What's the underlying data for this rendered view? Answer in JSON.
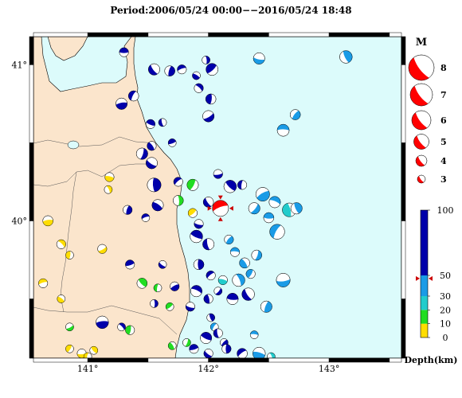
{
  "title": "Period:2006/05/24 00:00−−2016/05/24 18:48",
  "map": {
    "lon_range": [
      140.55,
      143.6
    ],
    "lat_range": [
      39.12,
      41.18
    ],
    "lon_ticks": [
      {
        "value": 141,
        "label": "141°"
      },
      {
        "value": 142,
        "label": "142°"
      },
      {
        "value": 143,
        "label": "143°"
      }
    ],
    "lat_ticks": [
      {
        "value": 40,
        "label": "40°"
      },
      {
        "value": 41,
        "label": "41°"
      }
    ],
    "land_color": "#fbe5cc",
    "sea_color": "#dcfbfb",
    "selected_event": {
      "lon": 142.1,
      "lat": 40.08,
      "mag": 5,
      "color": "#ff0000"
    }
  },
  "magnitude_legend": {
    "title": "M",
    "items": [
      {
        "mag": 8,
        "label": "8"
      },
      {
        "mag": 7,
        "label": "7"
      },
      {
        "mag": 6,
        "label": "6"
      },
      {
        "mag": 5,
        "label": "5"
      },
      {
        "mag": 4,
        "label": "4"
      },
      {
        "mag": 3,
        "label": "3"
      }
    ]
  },
  "depth_scale": {
    "label": "Depth(km)",
    "ticks": [
      {
        "value": 100,
        "label": "100"
      },
      {
        "value": 50,
        "label": "50"
      },
      {
        "value": 30,
        "label": "30"
      },
      {
        "value": 20,
        "label": "20"
      },
      {
        "value": 10,
        "label": "10"
      },
      {
        "value": 0,
        "label": "0"
      }
    ],
    "colors": {
      "deep": "#0000aa",
      "mid": "#1a9be6",
      "teal": "#22cccc",
      "green": "#22dd22",
      "yellow": "#ffdd00"
    },
    "marker_depth": 47
  },
  "events": [
    {
      "lon": 141.3,
      "lat": 41.08,
      "mag": 3.8,
      "c": "deep"
    },
    {
      "lon": 141.55,
      "lat": 40.97,
      "mag": 4.2,
      "c": "deep"
    },
    {
      "lon": 141.68,
      "lat": 40.96,
      "mag": 4.0,
      "c": "deep"
    },
    {
      "lon": 141.78,
      "lat": 40.97,
      "mag": 3.8,
      "c": "deep"
    },
    {
      "lon": 141.9,
      "lat": 40.93,
      "mag": 3.6,
      "c": "deep"
    },
    {
      "lon": 141.98,
      "lat": 41.03,
      "mag": 3.6,
      "c": "deep"
    },
    {
      "lon": 142.03,
      "lat": 40.97,
      "mag": 4.3,
      "c": "deep"
    },
    {
      "lon": 142.42,
      "lat": 41.04,
      "mag": 4.2,
      "c": "mid"
    },
    {
      "lon": 143.14,
      "lat": 41.05,
      "mag": 4.4,
      "c": "mid"
    },
    {
      "lon": 141.38,
      "lat": 40.8,
      "mag": 4.0,
      "c": "deep"
    },
    {
      "lon": 141.28,
      "lat": 40.75,
      "mag": 4.2,
      "c": "deep"
    },
    {
      "lon": 141.92,
      "lat": 40.85,
      "mag": 3.8,
      "c": "deep"
    },
    {
      "lon": 142.02,
      "lat": 40.78,
      "mag": 4.0,
      "c": "deep"
    },
    {
      "lon": 142.0,
      "lat": 40.67,
      "mag": 4.2,
      "c": "deep"
    },
    {
      "lon": 141.52,
      "lat": 40.62,
      "mag": 3.8,
      "c": "deep"
    },
    {
      "lon": 141.62,
      "lat": 40.63,
      "mag": 3.6,
      "c": "deep"
    },
    {
      "lon": 142.72,
      "lat": 40.68,
      "mag": 4.0,
      "c": "mid"
    },
    {
      "lon": 142.62,
      "lat": 40.58,
      "mag": 4.3,
      "c": "mid"
    },
    {
      "lon": 141.53,
      "lat": 40.48,
      "mag": 3.8,
      "c": "deep"
    },
    {
      "lon": 141.45,
      "lat": 40.43,
      "mag": 4.2,
      "c": "deep"
    },
    {
      "lon": 141.7,
      "lat": 40.5,
      "mag": 3.6,
      "c": "deep"
    },
    {
      "lon": 141.53,
      "lat": 40.37,
      "mag": 4.2,
      "c": "deep"
    },
    {
      "lon": 141.55,
      "lat": 40.23,
      "mag": 4.6,
      "c": "deep"
    },
    {
      "lon": 141.75,
      "lat": 40.25,
      "mag": 3.8,
      "c": "deep"
    },
    {
      "lon": 141.18,
      "lat": 40.28,
      "mag": 3.8,
      "c": "yellow"
    },
    {
      "lon": 141.17,
      "lat": 40.2,
      "mag": 3.6,
      "c": "yellow"
    },
    {
      "lon": 141.87,
      "lat": 40.23,
      "mag": 4.2,
      "c": "green"
    },
    {
      "lon": 142.08,
      "lat": 40.3,
      "mag": 3.8,
      "c": "deep"
    },
    {
      "lon": 142.18,
      "lat": 40.22,
      "mag": 4.4,
      "c": "deep"
    },
    {
      "lon": 142.28,
      "lat": 40.23,
      "mag": 3.8,
      "c": "deep"
    },
    {
      "lon": 142.45,
      "lat": 40.17,
      "mag": 4.6,
      "c": "mid"
    },
    {
      "lon": 142.55,
      "lat": 40.12,
      "mag": 4.2,
      "c": "mid"
    },
    {
      "lon": 142.67,
      "lat": 40.07,
      "mag": 4.6,
      "c": "teal"
    },
    {
      "lon": 142.38,
      "lat": 40.08,
      "mag": 4.2,
      "c": "mid"
    },
    {
      "lon": 142.5,
      "lat": 40.02,
      "mag": 4.0,
      "c": "mid"
    },
    {
      "lon": 142.0,
      "lat": 40.12,
      "mag": 4.0,
      "c": "deep"
    },
    {
      "lon": 141.33,
      "lat": 40.07,
      "mag": 3.8,
      "c": "deep"
    },
    {
      "lon": 141.48,
      "lat": 40.02,
      "mag": 3.6,
      "c": "deep"
    },
    {
      "lon": 141.58,
      "lat": 40.1,
      "mag": 4.2,
      "c": "deep"
    },
    {
      "lon": 141.75,
      "lat": 40.13,
      "mag": 4.0,
      "c": "green"
    },
    {
      "lon": 141.87,
      "lat": 40.05,
      "mag": 3.8,
      "c": "yellow"
    },
    {
      "lon": 141.92,
      "lat": 39.98,
      "mag": 3.8,
      "c": "deep"
    },
    {
      "lon": 142.73,
      "lat": 40.08,
      "mag": 4.2,
      "c": "mid"
    },
    {
      "lon": 142.57,
      "lat": 39.93,
      "mag": 4.8,
      "c": "mid"
    },
    {
      "lon": 140.67,
      "lat": 40.0,
      "mag": 4.0,
      "c": "yellow"
    },
    {
      "lon": 140.78,
      "lat": 39.85,
      "mag": 3.8,
      "c": "yellow"
    },
    {
      "lon": 140.85,
      "lat": 39.78,
      "mag": 3.6,
      "c": "yellow"
    },
    {
      "lon": 141.12,
      "lat": 39.82,
      "mag": 3.8,
      "c": "yellow"
    },
    {
      "lon": 141.9,
      "lat": 39.9,
      "mag": 4.4,
      "c": "deep"
    },
    {
      "lon": 142.0,
      "lat": 39.85,
      "mag": 4.2,
      "c": "deep"
    },
    {
      "lon": 142.17,
      "lat": 39.88,
      "mag": 3.8,
      "c": "mid"
    },
    {
      "lon": 142.22,
      "lat": 39.8,
      "mag": 3.8,
      "c": "mid"
    },
    {
      "lon": 142.3,
      "lat": 39.73,
      "mag": 4.0,
      "c": "mid"
    },
    {
      "lon": 142.4,
      "lat": 39.78,
      "mag": 4.0,
      "c": "mid"
    },
    {
      "lon": 141.35,
      "lat": 39.72,
      "mag": 3.8,
      "c": "deep"
    },
    {
      "lon": 141.62,
      "lat": 39.72,
      "mag": 3.6,
      "c": "deep"
    },
    {
      "lon": 141.92,
      "lat": 39.72,
      "mag": 4.0,
      "c": "deep"
    },
    {
      "lon": 142.02,
      "lat": 39.65,
      "mag": 3.8,
      "c": "deep"
    },
    {
      "lon": 142.12,
      "lat": 39.62,
      "mag": 3.8,
      "c": "teal"
    },
    {
      "lon": 142.25,
      "lat": 39.62,
      "mag": 4.4,
      "c": "mid"
    },
    {
      "lon": 142.35,
      "lat": 39.66,
      "mag": 3.8,
      "c": "mid"
    },
    {
      "lon": 142.62,
      "lat": 39.62,
      "mag": 4.6,
      "c": "mid"
    },
    {
      "lon": 141.45,
      "lat": 39.6,
      "mag": 4.0,
      "c": "green"
    },
    {
      "lon": 141.58,
      "lat": 39.57,
      "mag": 3.6,
      "c": "green"
    },
    {
      "lon": 141.72,
      "lat": 39.58,
      "mag": 3.8,
      "c": "deep"
    },
    {
      "lon": 141.9,
      "lat": 39.55,
      "mag": 4.2,
      "c": "deep"
    },
    {
      "lon": 142.0,
      "lat": 39.5,
      "mag": 3.8,
      "c": "deep"
    },
    {
      "lon": 142.08,
      "lat": 39.55,
      "mag": 3.6,
      "c": "deep"
    },
    {
      "lon": 142.2,
      "lat": 39.5,
      "mag": 4.2,
      "c": "deep"
    },
    {
      "lon": 142.33,
      "lat": 39.53,
      "mag": 4.4,
      "c": "deep"
    },
    {
      "lon": 142.48,
      "lat": 39.45,
      "mag": 4.2,
      "c": "mid"
    },
    {
      "lon": 140.63,
      "lat": 39.6,
      "mag": 3.8,
      "c": "yellow"
    },
    {
      "lon": 140.78,
      "lat": 39.5,
      "mag": 3.6,
      "c": "yellow"
    },
    {
      "lon": 141.55,
      "lat": 39.47,
      "mag": 3.6,
      "c": "deep"
    },
    {
      "lon": 141.68,
      "lat": 39.45,
      "mag": 3.6,
      "c": "green"
    },
    {
      "lon": 141.85,
      "lat": 39.45,
      "mag": 3.8,
      "c": "deep"
    },
    {
      "lon": 142.02,
      "lat": 39.38,
      "mag": 3.6,
      "c": "deep"
    },
    {
      "lon": 142.05,
      "lat": 39.32,
      "mag": 3.6,
      "c": "mid"
    },
    {
      "lon": 141.12,
      "lat": 39.35,
      "mag": 4.4,
      "c": "deep"
    },
    {
      "lon": 141.28,
      "lat": 39.32,
      "mag": 3.6,
      "c": "deep"
    },
    {
      "lon": 141.35,
      "lat": 39.3,
      "mag": 3.8,
      "c": "green"
    },
    {
      "lon": 140.85,
      "lat": 39.32,
      "mag": 3.6,
      "c": "green"
    },
    {
      "lon": 141.98,
      "lat": 39.25,
      "mag": 4.2,
      "c": "deep"
    },
    {
      "lon": 142.08,
      "lat": 39.28,
      "mag": 3.8,
      "c": "deep"
    },
    {
      "lon": 142.13,
      "lat": 39.22,
      "mag": 3.6,
      "c": "deep"
    },
    {
      "lon": 142.38,
      "lat": 39.27,
      "mag": 3.6,
      "c": "mid"
    },
    {
      "lon": 141.7,
      "lat": 39.2,
      "mag": 3.6,
      "c": "green"
    },
    {
      "lon": 141.82,
      "lat": 39.22,
      "mag": 3.6,
      "c": "green"
    },
    {
      "lon": 141.88,
      "lat": 39.18,
      "mag": 3.8,
      "c": "deep"
    },
    {
      "lon": 142.0,
      "lat": 39.15,
      "mag": 3.8,
      "c": "deep"
    },
    {
      "lon": 142.15,
      "lat": 39.18,
      "mag": 3.8,
      "c": "deep"
    },
    {
      "lon": 142.28,
      "lat": 39.15,
      "mag": 4.0,
      "c": "deep"
    },
    {
      "lon": 142.42,
      "lat": 39.15,
      "mag": 4.4,
      "c": "mid"
    },
    {
      "lon": 142.52,
      "lat": 39.13,
      "mag": 3.6,
      "c": "teal"
    },
    {
      "lon": 140.85,
      "lat": 39.18,
      "mag": 3.6,
      "c": "yellow"
    },
    {
      "lon": 140.95,
      "lat": 39.15,
      "mag": 3.8,
      "c": "yellow"
    },
    {
      "lon": 141.05,
      "lat": 39.17,
      "mag": 3.6,
      "c": "yellow"
    },
    {
      "lon": 141.0,
      "lat": 39.13,
      "mag": 3.6,
      "c": "yellow"
    }
  ]
}
